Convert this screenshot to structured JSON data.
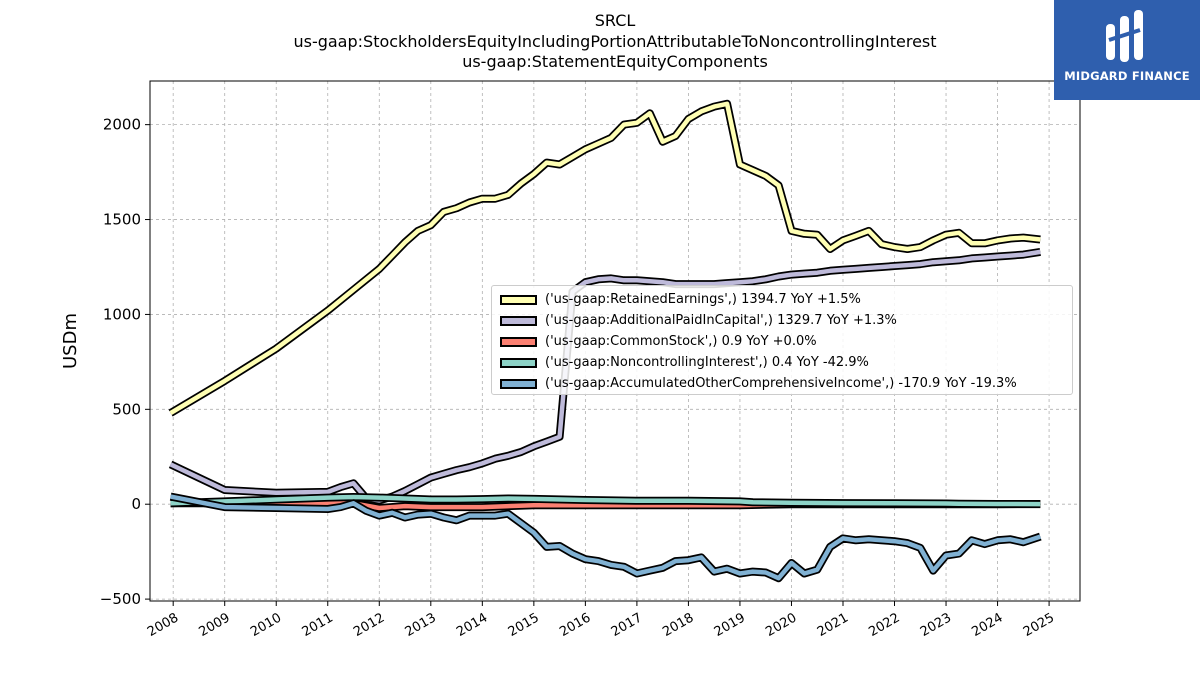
{
  "header": {
    "title_lines": [
      "SRCL",
      "us-gaap:StockholdersEquityIncludingPortionAttributableToNoncontrollingInterest",
      "us-gaap:StatementEquityComponents"
    ]
  },
  "logo": {
    "text": "MIDGARD FINANCE",
    "background": "#2f5fae"
  },
  "chart_data": {
    "type": "line",
    "title": "SRCL\nus-gaap:StockholdersEquityIncludingPortionAttributableToNoncontrollingInterest\nus-gaap:StatementEquityComponents",
    "xlabel": "",
    "ylabel": "USDm",
    "xlim": [
      2007.55,
      2025.6
    ],
    "ylim": [
      -510,
      2230
    ],
    "x_ticks": [
      2008,
      2009,
      2010,
      2011,
      2012,
      2013,
      2014,
      2015,
      2016,
      2017,
      2018,
      2019,
      2020,
      2021,
      2022,
      2023,
      2024,
      2025
    ],
    "y_ticks": [
      -500,
      0,
      500,
      1000,
      1500,
      2000
    ],
    "grid": true,
    "legend_position": "center-right",
    "series": [
      {
        "name": "('us-gaap:RetainedEarnings',) 1394.7 YoY +1.5%",
        "color": "#ffffb3",
        "x": [
          2007.95,
          2009,
          2010,
          2011,
          2011.5,
          2012,
          2012.25,
          2012.5,
          2012.75,
          2013,
          2013.25,
          2013.5,
          2013.75,
          2014,
          2014.25,
          2014.5,
          2014.75,
          2015,
          2015.25,
          2015.5,
          2015.75,
          2016,
          2016.25,
          2016.5,
          2016.75,
          2017,
          2017.25,
          2017.5,
          2017.75,
          2018,
          2018.25,
          2018.5,
          2018.75,
          2019,
          2019.25,
          2019.5,
          2019.75,
          2020,
          2020.25,
          2020.5,
          2020.75,
          2021,
          2021.25,
          2021.5,
          2021.75,
          2022,
          2022.25,
          2022.5,
          2022.75,
          2023,
          2023.25,
          2023.5,
          2023.75,
          2024,
          2024.25,
          2024.5,
          2024.83
        ],
        "y": [
          480,
          650,
          820,
          1020,
          1130,
          1240,
          1310,
          1380,
          1440,
          1470,
          1540,
          1560,
          1590,
          1610,
          1610,
          1630,
          1690,
          1740,
          1800,
          1790,
          1830,
          1870,
          1900,
          1930,
          2000,
          2010,
          2060,
          1910,
          1940,
          2030,
          2070,
          2095,
          2110,
          1790,
          1760,
          1730,
          1680,
          1440,
          1425,
          1420,
          1345,
          1390,
          1415,
          1440,
          1370,
          1355,
          1345,
          1355,
          1390,
          1420,
          1430,
          1375,
          1375,
          1390,
          1400,
          1405,
          1394.7
        ]
      },
      {
        "name": "('us-gaap:AdditionalPaidInCapital',) 1329.7 YoY +1.3%",
        "color": "#bebada",
        "x": [
          2007.95,
          2009,
          2010,
          2011,
          2011.25,
          2011.5,
          2011.75,
          2012,
          2012.25,
          2012.5,
          2012.75,
          2013,
          2013.25,
          2013.5,
          2013.75,
          2014,
          2014.25,
          2014.5,
          2014.75,
          2015,
          2015.25,
          2015.5,
          2015.75,
          2016,
          2016.25,
          2016.5,
          2016.75,
          2017,
          2017.25,
          2017.5,
          2017.75,
          2018,
          2018.25,
          2018.5,
          2018.75,
          2019,
          2019.25,
          2019.5,
          2019.75,
          2020,
          2020.25,
          2020.5,
          2020.75,
          2021,
          2021.25,
          2021.5,
          2021.75,
          2022,
          2022.25,
          2022.5,
          2022.75,
          2023,
          2023.25,
          2023.5,
          2023.75,
          2024,
          2024.25,
          2024.5,
          2024.83
        ],
        "y": [
          210,
          75,
          60,
          65,
          90,
          110,
          30,
          20,
          40,
          70,
          105,
          140,
          160,
          180,
          195,
          215,
          240,
          255,
          275,
          305,
          330,
          355,
          1120,
          1170,
          1185,
          1190,
          1180,
          1180,
          1175,
          1170,
          1160,
          1160,
          1160,
          1160,
          1165,
          1170,
          1175,
          1185,
          1200,
          1210,
          1215,
          1220,
          1230,
          1235,
          1240,
          1245,
          1250,
          1255,
          1260,
          1265,
          1275,
          1280,
          1285,
          1295,
          1300,
          1305,
          1310,
          1315,
          1329.7
        ]
      },
      {
        "name": "('us-gaap:CommonStock',) 0.9 YoY +0.0%",
        "color": "#fb8072",
        "x": [
          2007.95,
          2009,
          2010,
          2011,
          2011.5,
          2012,
          2012.5,
          2013,
          2014,
          2015,
          2016,
          2017,
          2018,
          2019,
          2020,
          2021,
          2022,
          2023,
          2024,
          2024.83
        ],
        "y": [
          5,
          5,
          5,
          5,
          5,
          -20,
          -10,
          -15,
          -15,
          -5,
          -5,
          -5,
          -5,
          -5,
          0,
          0,
          0,
          0,
          0,
          0.9
        ]
      },
      {
        "name": "('us-gaap:NoncontrollingInterest',) 0.4 YoY -42.9%",
        "color": "#8dd3c7",
        "x": [
          2007.95,
          2009,
          2010,
          2011,
          2011.5,
          2012,
          2012.5,
          2013,
          2013.5,
          2014,
          2014.5,
          2015,
          2016,
          2016.5,
          2017,
          2018,
          2019,
          2019.25,
          2020,
          2021,
          2022,
          2023,
          2023.25,
          2024,
          2024.83
        ],
        "y": [
          5,
          15,
          25,
          35,
          38,
          35,
          30,
          25,
          25,
          27,
          30,
          28,
          22,
          20,
          18,
          18,
          15,
          10,
          8,
          6,
          5,
          4,
          2,
          1,
          0.4
        ]
      },
      {
        "name": "('us-gaap:AccumulatedOtherComprehensiveIncome',) -170.9 YoY -19.3%",
        "color": "#80b1d3",
        "x": [
          2007.95,
          2009,
          2010,
          2011,
          2011.25,
          2011.5,
          2011.75,
          2012,
          2012.25,
          2012.5,
          2012.75,
          2013,
          2013.25,
          2013.5,
          2013.75,
          2014,
          2014.25,
          2014.5,
          2014.75,
          2015,
          2015.25,
          2015.5,
          2015.75,
          2016,
          2016.25,
          2016.5,
          2016.75,
          2017,
          2017.25,
          2017.5,
          2017.75,
          2018,
          2018.25,
          2018.5,
          2018.75,
          2019,
          2019.25,
          2019.5,
          2019.75,
          2020,
          2020.25,
          2020.5,
          2020.75,
          2021,
          2021.25,
          2021.5,
          2021.75,
          2022,
          2022.25,
          2022.5,
          2022.75,
          2023,
          2023.25,
          2023.5,
          2023.75,
          2024,
          2024.25,
          2024.5,
          2024.83
        ],
        "y": [
          40,
          -15,
          -20,
          -25,
          -15,
          5,
          -35,
          -60,
          -45,
          -70,
          -55,
          -50,
          -70,
          -85,
          -60,
          -60,
          -60,
          -50,
          -100,
          -150,
          -225,
          -220,
          -260,
          -290,
          -300,
          -320,
          -330,
          -365,
          -350,
          -335,
          -300,
          -295,
          -280,
          -355,
          -340,
          -365,
          -355,
          -360,
          -390,
          -310,
          -365,
          -345,
          -225,
          -180,
          -190,
          -185,
          -190,
          -195,
          -205,
          -230,
          -350,
          -270,
          -260,
          -190,
          -210,
          -190,
          -185,
          -200,
          -170.9
        ]
      }
    ]
  }
}
